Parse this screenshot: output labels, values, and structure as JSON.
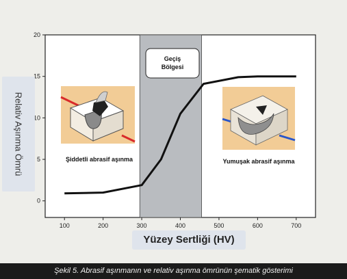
{
  "chart_data": {
    "type": "line",
    "xlabel": "Yüzey Sertliği (HV)",
    "ylabel": "Relativ Aşınma Ömrü",
    "xlim": [
      50,
      750
    ],
    "ylim": [
      -2,
      20
    ],
    "x_ticks": [
      "100",
      "200",
      "300",
      "400",
      "500",
      "600",
      "700"
    ],
    "y_ticks": [
      "0",
      "5",
      "10",
      "15",
      "20"
    ],
    "grid": false,
    "series": [
      {
        "x": [
          100,
          200,
          300,
          350,
          400,
          460,
          550,
          600,
          700
        ],
        "y": [
          0.9,
          1.0,
          1.9,
          5.0,
          10.5,
          14.1,
          14.9,
          15.0,
          15.0
        ]
      }
    ],
    "shaded_region": {
      "x_start": 295,
      "x_end": 455,
      "color": "#b9bcc0"
    },
    "annotations": {
      "transition": "Geçiş Bölgesi",
      "severe": "Şiddetli abrasif aşınma",
      "mild": "Yumuşak abrasif aşınma"
    },
    "colors": {
      "line": "#111111",
      "arrow_red": "#d92a2a",
      "arrow_blue": "#2a56c9",
      "illustration_bg": "#f2cc96"
    }
  },
  "caption": "Şekil 5. Abrasif aşınmanın ve relativ aşınma ömrünün şematik gösterimi",
  "illustrations": {
    "left": "severe-abrasion-illustration",
    "right": "mild-abrasion-illustration"
  }
}
